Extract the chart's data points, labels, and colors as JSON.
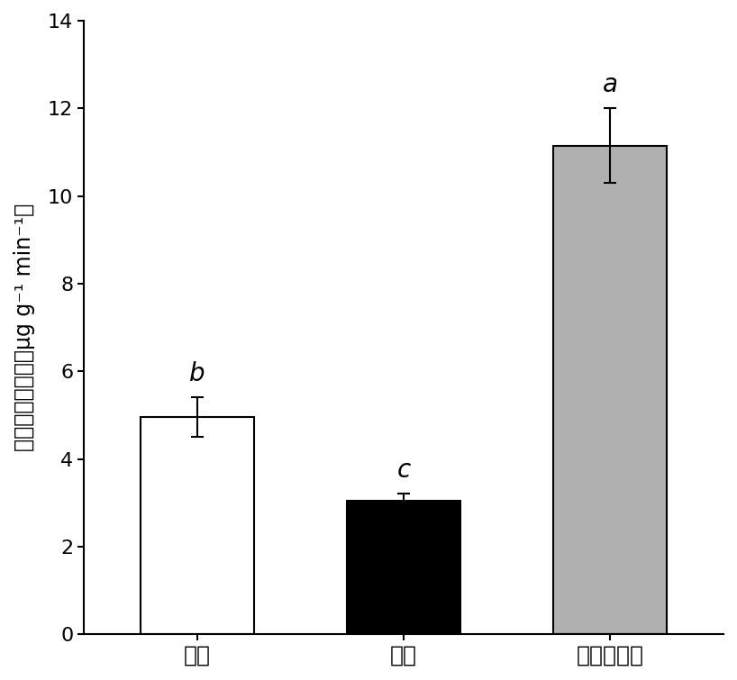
{
  "categories": [
    "对照",
    "磷脉",
    "生物激活剂"
  ],
  "values": [
    4.95,
    3.05,
    11.15
  ],
  "errors": [
    0.45,
    0.15,
    0.85
  ],
  "bar_colors": [
    "#ffffff",
    "#000000",
    "#b0b0b0"
  ],
  "bar_edgecolors": [
    "#000000",
    "#000000",
    "#000000"
  ],
  "significance_labels": [
    "b",
    "c",
    "a"
  ],
  "ylabel_chinese": "酸性磷酸酶活性（",
  "ylabel_units": "μg g⁻¹ min⁻¹）",
  "ylim": [
    0,
    14
  ],
  "yticks": [
    0,
    2,
    4,
    6,
    8,
    10,
    12,
    14
  ],
  "bar_width": 0.55,
  "figure_width": 8.18,
  "figure_height": 7.55,
  "dpi": 100,
  "background_color": "#ffffff",
  "sig_label_fontsize": 20,
  "ylabel_fontsize": 17,
  "tick_fontsize": 16,
  "xlabel_fontsize": 18
}
